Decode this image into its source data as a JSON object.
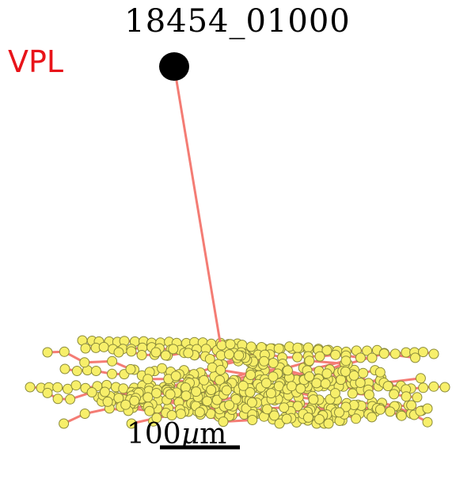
{
  "title": "18454_01000",
  "region_label": "VPL",
  "scale_bar": {
    "number": "100",
    "unit_symbol": "µ",
    "unit_suffix": "m"
  },
  "colors": {
    "region": "#e8141a",
    "edge": "#f47c74",
    "node_fill": "#f7ef6a",
    "node_stroke": "#8a8a3a",
    "soma": "#000000"
  }
}
